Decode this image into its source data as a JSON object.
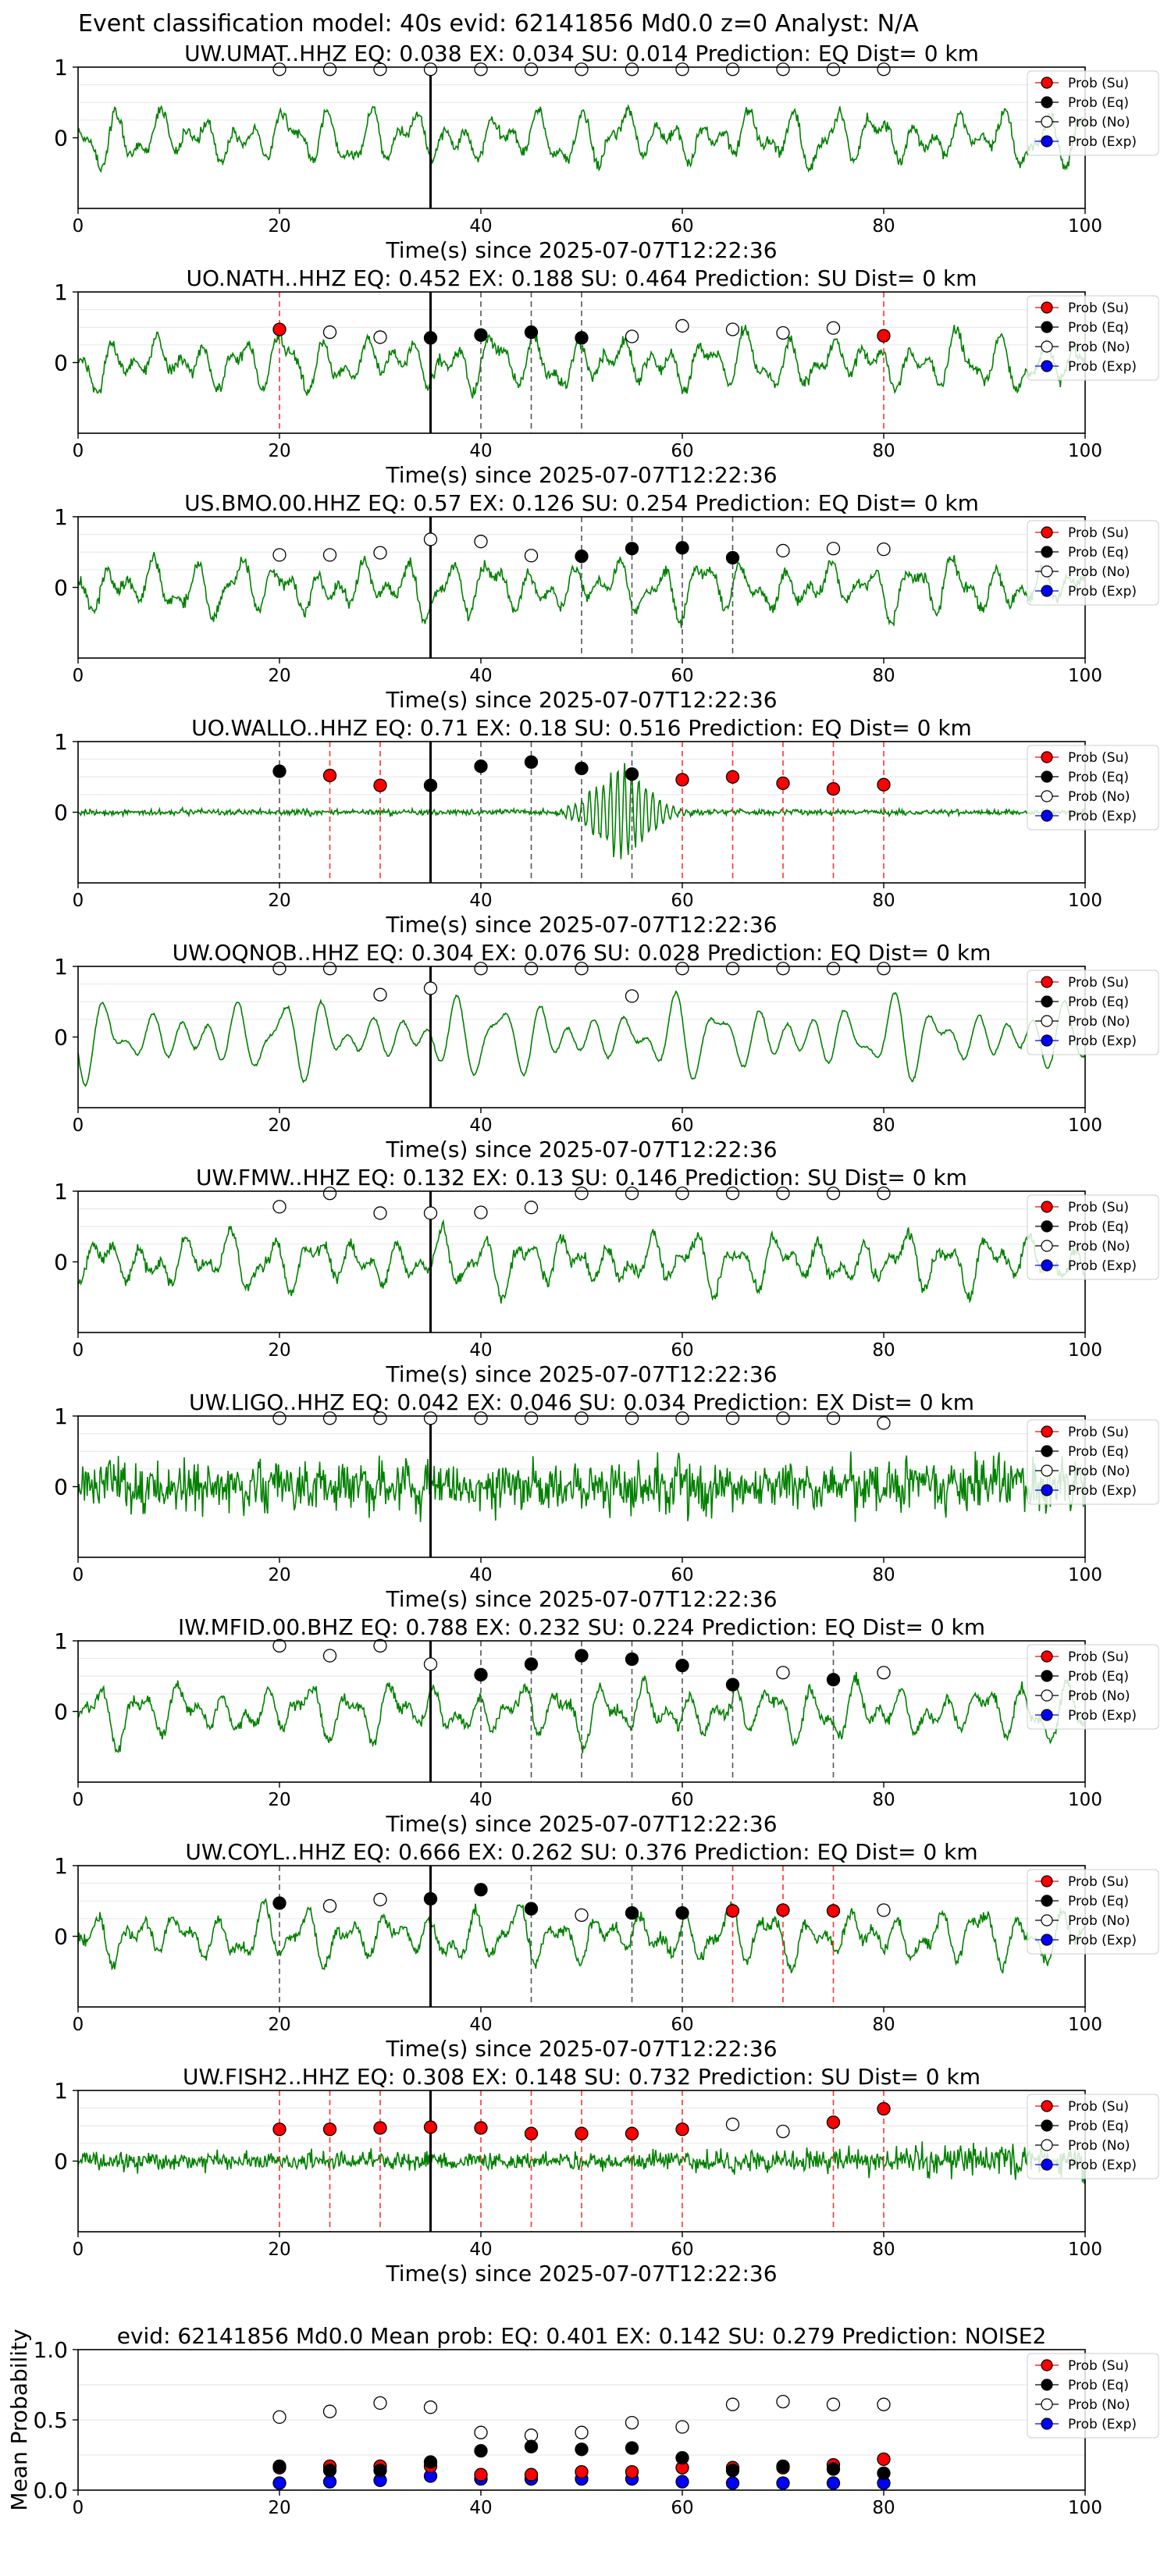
{
  "figure": {
    "suptitle": "Event classification model: 40s evid: 62141856 Md0.0 z=0 Analyst: N/A",
    "xlabel": "Time(s) since 2025-07-07T12:22:36",
    "legend_labels": [
      "Prob (Su)",
      "Prob (Eq)",
      "Prob (No)",
      "Prob (Exp)"
    ],
    "colors": {
      "trace": "#008000",
      "su": "#ff0000",
      "eq": "#000000",
      "no": "#ffffff",
      "exp": "#0000ff",
      "pick_line": "#000000",
      "eq_window": "#555555",
      "su_window": "#ff3333"
    }
  },
  "chart_data": [
    {
      "type": "line",
      "title": "UW.UMAT..HHZ   EQ: 0.038  EX: 0.034  SU: 0.014   Prediction: EQ    Dist= 0 km",
      "xlim": [
        0,
        100
      ],
      "ylim": [
        -1,
        1
      ],
      "xticks": [
        0,
        20,
        40,
        60,
        80,
        100
      ],
      "yticks": [
        0,
        1
      ],
      "pick_time": 35,
      "noise_style": "mixed",
      "points": {
        "no": [
          [
            20,
            0.97
          ],
          [
            25,
            0.97
          ],
          [
            30,
            0.97
          ],
          [
            35,
            0.97
          ],
          [
            40,
            0.97
          ],
          [
            45,
            0.97
          ],
          [
            50,
            0.97
          ],
          [
            55,
            0.97
          ],
          [
            60,
            0.97
          ],
          [
            65,
            0.97
          ],
          [
            70,
            0.97
          ],
          [
            75,
            0.97
          ],
          [
            80,
            0.97
          ]
        ]
      },
      "eq_windows": [],
      "su_windows": []
    },
    {
      "type": "line",
      "title": "UO.NATH..HHZ   EQ: 0.452  EX: 0.188  SU: 0.464   Prediction: SU    Dist= 0 km",
      "xlim": [
        0,
        100
      ],
      "ylim": [
        -1,
        1
      ],
      "xticks": [
        0,
        20,
        40,
        60,
        80,
        100
      ],
      "yticks": [
        0,
        1
      ],
      "pick_time": 35,
      "noise_style": "mixed",
      "points": {
        "su": [
          [
            20,
            0.47
          ],
          [
            80,
            0.38
          ]
        ],
        "eq": [
          [
            35,
            0.35
          ],
          [
            40,
            0.39
          ],
          [
            45,
            0.43
          ],
          [
            50,
            0.35
          ]
        ],
        "no": [
          [
            25,
            0.43
          ],
          [
            30,
            0.36
          ],
          [
            55,
            0.37
          ],
          [
            60,
            0.52
          ],
          [
            65,
            0.47
          ],
          [
            70,
            0.42
          ],
          [
            75,
            0.49
          ]
        ]
      },
      "eq_windows": [
        40,
        45,
        50
      ],
      "su_windows": [
        20,
        80
      ]
    },
    {
      "type": "line",
      "title": "US.BMO.00.HHZ   EQ: 0.57  EX: 0.126  SU: 0.254   Prediction: EQ    Dist= 0 km",
      "xlim": [
        0,
        100
      ],
      "ylim": [
        -1,
        1
      ],
      "xticks": [
        0,
        20,
        40,
        60,
        80,
        100
      ],
      "yticks": [
        0,
        1
      ],
      "pick_time": 35,
      "noise_style": "mixed",
      "points": {
        "eq": [
          [
            50,
            0.44
          ],
          [
            55,
            0.55
          ],
          [
            60,
            0.56
          ],
          [
            65,
            0.42
          ]
        ],
        "no": [
          [
            20,
            0.46
          ],
          [
            25,
            0.46
          ],
          [
            30,
            0.49
          ],
          [
            35,
            0.68
          ],
          [
            40,
            0.65
          ],
          [
            45,
            0.45
          ],
          [
            70,
            0.52
          ],
          [
            75,
            0.55
          ],
          [
            80,
            0.54
          ]
        ]
      },
      "eq_windows": [
        50,
        55,
        60,
        65
      ],
      "su_windows": []
    },
    {
      "type": "line",
      "title": "UO.WALLO..HHZ   EQ: 0.71  EX: 0.18  SU: 0.516   Prediction: EQ    Dist= 0 km",
      "xlim": [
        0,
        100
      ],
      "ylim": [
        -1,
        1
      ],
      "xticks": [
        0,
        20,
        40,
        60,
        80,
        100
      ],
      "yticks": [
        0,
        1
      ],
      "pick_time": 35,
      "noise_style": "burst",
      "points": {
        "su": [
          [
            25,
            0.52
          ],
          [
            30,
            0.38
          ],
          [
            60,
            0.46
          ],
          [
            65,
            0.5
          ],
          [
            70,
            0.41
          ],
          [
            75,
            0.33
          ],
          [
            80,
            0.39
          ]
        ],
        "eq": [
          [
            20,
            0.58
          ],
          [
            35,
            0.38
          ],
          [
            40,
            0.65
          ],
          [
            45,
            0.71
          ],
          [
            50,
            0.62
          ],
          [
            55,
            0.54
          ]
        ]
      },
      "eq_windows": [
        20,
        40,
        45,
        50,
        55
      ],
      "su_windows": [
        25,
        30,
        60,
        65,
        70,
        75,
        80
      ]
    },
    {
      "type": "line",
      "title": "UW.OQNOB..HHZ   EQ: 0.304  EX: 0.076  SU: 0.028   Prediction: EQ    Dist= 0 km",
      "xlim": [
        0,
        100
      ],
      "ylim": [
        -1,
        1
      ],
      "xticks": [
        0,
        20,
        40,
        60,
        80,
        100
      ],
      "yticks": [
        0,
        1
      ],
      "pick_time": 35,
      "noise_style": "smooth",
      "points": {
        "no": [
          [
            20,
            0.97
          ],
          [
            25,
            0.97
          ],
          [
            30,
            0.6
          ],
          [
            35,
            0.69
          ],
          [
            40,
            0.97
          ],
          [
            45,
            0.97
          ],
          [
            50,
            0.97
          ],
          [
            55,
            0.58
          ],
          [
            60,
            0.97
          ],
          [
            65,
            0.97
          ],
          [
            70,
            0.97
          ],
          [
            75,
            0.97
          ],
          [
            80,
            0.97
          ]
        ]
      },
      "eq_windows": [],
      "su_windows": []
    },
    {
      "type": "line",
      "title": "UW.FMW..HHZ   EQ: 0.132  EX: 0.13  SU: 0.146   Prediction: SU    Dist= 0 km",
      "xlim": [
        0,
        100
      ],
      "ylim": [
        -1,
        1
      ],
      "xticks": [
        0,
        20,
        40,
        60,
        80,
        100
      ],
      "yticks": [
        0,
        1
      ],
      "pick_time": 35,
      "noise_style": "mixed",
      "points": {
        "no": [
          [
            20,
            0.78
          ],
          [
            25,
            0.97
          ],
          [
            30,
            0.69
          ],
          [
            35,
            0.69
          ],
          [
            40,
            0.7
          ],
          [
            45,
            0.77
          ],
          [
            50,
            0.97
          ],
          [
            55,
            0.97
          ],
          [
            60,
            0.97
          ],
          [
            65,
            0.97
          ],
          [
            70,
            0.97
          ],
          [
            75,
            0.97
          ],
          [
            80,
            0.97
          ]
        ]
      },
      "eq_windows": [],
      "su_windows": []
    },
    {
      "type": "line",
      "title": "UW.LIGO..HHZ   EQ: 0.042  EX: 0.046  SU: 0.034   Prediction: EX    Dist= 0 km",
      "xlim": [
        0,
        100
      ],
      "ylim": [
        -1,
        1
      ],
      "xticks": [
        0,
        20,
        40,
        60,
        80,
        100
      ],
      "yticks": [
        0,
        1
      ],
      "pick_time": 35,
      "noise_style": "dense",
      "points": {
        "no": [
          [
            20,
            0.97
          ],
          [
            25,
            0.97
          ],
          [
            30,
            0.97
          ],
          [
            35,
            0.97
          ],
          [
            40,
            0.97
          ],
          [
            45,
            0.97
          ],
          [
            50,
            0.97
          ],
          [
            55,
            0.97
          ],
          [
            60,
            0.97
          ],
          [
            65,
            0.97
          ],
          [
            70,
            0.97
          ],
          [
            75,
            0.97
          ],
          [
            80,
            0.9
          ]
        ]
      },
      "eq_windows": [],
      "su_windows": []
    },
    {
      "type": "line",
      "title": "IW.MFID.00.BHZ   EQ: 0.788  EX: 0.232  SU: 0.224   Prediction: EQ    Dist= 0 km",
      "xlim": [
        0,
        100
      ],
      "ylim": [
        -1,
        1
      ],
      "xticks": [
        0,
        20,
        40,
        60,
        80,
        100
      ],
      "yticks": [
        0,
        1
      ],
      "pick_time": 35,
      "noise_style": "mixed",
      "points": {
        "eq": [
          [
            40,
            0.52
          ],
          [
            45,
            0.67
          ],
          [
            50,
            0.79
          ],
          [
            55,
            0.74
          ],
          [
            60,
            0.65
          ],
          [
            65,
            0.38
          ],
          [
            75,
            0.45
          ]
        ],
        "no": [
          [
            20,
            0.93
          ],
          [
            25,
            0.79
          ],
          [
            30,
            0.93
          ],
          [
            35,
            0.67
          ],
          [
            70,
            0.55
          ],
          [
            80,
            0.55
          ]
        ]
      },
      "eq_windows": [
        40,
        45,
        50,
        55,
        60,
        65,
        75
      ],
      "su_windows": []
    },
    {
      "type": "line",
      "title": "UW.COYL..HHZ   EQ: 0.666  EX: 0.262  SU: 0.376   Prediction: EQ    Dist= 0 km",
      "xlim": [
        0,
        100
      ],
      "ylim": [
        -1,
        1
      ],
      "xticks": [
        0,
        20,
        40,
        60,
        80,
        100
      ],
      "yticks": [
        0,
        1
      ],
      "pick_time": 35,
      "noise_style": "mixed",
      "points": {
        "su": [
          [
            65,
            0.36
          ],
          [
            70,
            0.37
          ],
          [
            75,
            0.36
          ]
        ],
        "eq": [
          [
            20,
            0.47
          ],
          [
            35,
            0.53
          ],
          [
            40,
            0.66
          ],
          [
            45,
            0.39
          ],
          [
            55,
            0.33
          ],
          [
            60,
            0.33
          ]
        ],
        "no": [
          [
            25,
            0.43
          ],
          [
            30,
            0.52
          ],
          [
            50,
            0.3
          ],
          [
            80,
            0.37
          ]
        ]
      },
      "eq_windows": [
        20,
        45,
        55,
        60
      ],
      "su_windows": [
        65,
        70,
        75
      ]
    },
    {
      "type": "line",
      "title": "UW.FISH2..HHZ   EQ: 0.308  EX: 0.148  SU: 0.732   Prediction: SU    Dist= 0 km",
      "xlim": [
        0,
        100
      ],
      "ylim": [
        -1,
        1
      ],
      "xticks": [
        0,
        20,
        40,
        60,
        80,
        100
      ],
      "yticks": [
        0,
        1
      ],
      "pick_time": 35,
      "noise_style": "dense_low",
      "points": {
        "su": [
          [
            20,
            0.45
          ],
          [
            25,
            0.45
          ],
          [
            30,
            0.47
          ],
          [
            35,
            0.48
          ],
          [
            40,
            0.47
          ],
          [
            45,
            0.39
          ],
          [
            50,
            0.39
          ],
          [
            55,
            0.39
          ],
          [
            60,
            0.45
          ],
          [
            75,
            0.55
          ],
          [
            80,
            0.74
          ]
        ],
        "no": [
          [
            65,
            0.52
          ],
          [
            70,
            0.42
          ]
        ]
      },
      "eq_windows": [],
      "su_windows": [
        20,
        25,
        30,
        40,
        45,
        50,
        55,
        60,
        75,
        80
      ]
    },
    {
      "type": "scatter",
      "title": "evid: 62141856  Md0.0   Mean prob:   EQ: 0.401  EX: 0.142  SU: 0.279   Prediction: NOISE2",
      "ylabel": "Mean Probability",
      "xlim": [
        0,
        100
      ],
      "ylim": [
        0,
        1
      ],
      "xticks": [
        0,
        20,
        40,
        60,
        80,
        100
      ],
      "yticks": [
        0.0,
        0.5,
        1.0
      ],
      "points": {
        "no": [
          [
            20,
            0.52
          ],
          [
            25,
            0.56
          ],
          [
            30,
            0.62
          ],
          [
            35,
            0.59
          ],
          [
            40,
            0.41
          ],
          [
            45,
            0.39
          ],
          [
            50,
            0.41
          ],
          [
            55,
            0.48
          ],
          [
            60,
            0.45
          ],
          [
            65,
            0.61
          ],
          [
            70,
            0.63
          ],
          [
            75,
            0.61
          ],
          [
            80,
            0.61
          ]
        ],
        "eq": [
          [
            20,
            0.17
          ],
          [
            25,
            0.14
          ],
          [
            30,
            0.14
          ],
          [
            35,
            0.2
          ],
          [
            40,
            0.28
          ],
          [
            45,
            0.31
          ],
          [
            50,
            0.29
          ],
          [
            55,
            0.3
          ],
          [
            60,
            0.23
          ],
          [
            65,
            0.14
          ],
          [
            70,
            0.17
          ],
          [
            75,
            0.15
          ],
          [
            80,
            0.12
          ]
        ],
        "su": [
          [
            20,
            0.16
          ],
          [
            25,
            0.17
          ],
          [
            30,
            0.17
          ],
          [
            35,
            0.17
          ],
          [
            40,
            0.11
          ],
          [
            45,
            0.11
          ],
          [
            50,
            0.13
          ],
          [
            55,
            0.13
          ],
          [
            60,
            0.16
          ],
          [
            65,
            0.16
          ],
          [
            70,
            0.16
          ],
          [
            75,
            0.18
          ],
          [
            80,
            0.22
          ]
        ],
        "exp": [
          [
            20,
            0.05
          ],
          [
            25,
            0.06
          ],
          [
            30,
            0.07
          ],
          [
            35,
            0.1
          ],
          [
            40,
            0.08
          ],
          [
            45,
            0.08
          ],
          [
            50,
            0.08
          ],
          [
            55,
            0.08
          ],
          [
            60,
            0.06
          ],
          [
            65,
            0.05
          ],
          [
            70,
            0.05
          ],
          [
            75,
            0.05
          ],
          [
            80,
            0.05
          ]
        ]
      }
    }
  ]
}
